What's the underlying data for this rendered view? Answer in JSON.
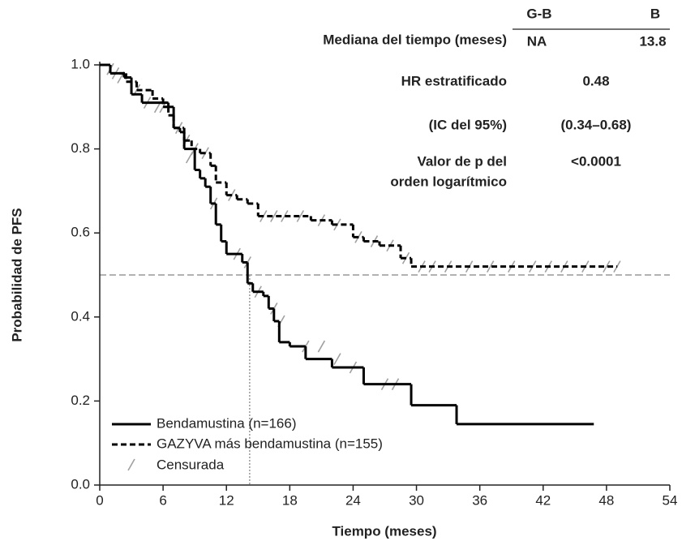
{
  "chart_data": {
    "type": "step",
    "xlabel": "Tiempo (meses)",
    "ylabel": "Probabilidad de PFS",
    "xlim": [
      0,
      54
    ],
    "xticks": [
      0,
      6,
      12,
      18,
      24,
      30,
      36,
      42,
      48,
      54
    ],
    "ylim": [
      0,
      1
    ],
    "yticks": [
      {
        "value": 0,
        "label": "0.0"
      },
      0.2,
      0.4,
      0.6,
      0.8,
      {
        "value": 1,
        "label": "1.0"
      }
    ],
    "series": [
      {
        "name": "Bendamustina (n=166)",
        "color": "#000000",
        "dash": false,
        "x": [
          0,
          1,
          2.3,
          3,
          4,
          6.5,
          7,
          7.6,
          8,
          9,
          9.5,
          10,
          10.5,
          11,
          11.5,
          12,
          13.5,
          14,
          14.5,
          15.5,
          16,
          16.5,
          17,
          18,
          19.5,
          22,
          25,
          29.5,
          33.8,
          46.8
        ],
        "values": [
          1,
          0.98,
          0.97,
          0.93,
          0.91,
          0.9,
          0.85,
          0.84,
          0.8,
          0.75,
          0.73,
          0.71,
          0.67,
          0.62,
          0.58,
          0.55,
          0.53,
          0.48,
          0.46,
          0.45,
          0.42,
          0.39,
          0.34,
          0.33,
          0.3,
          0.28,
          0.24,
          0.19,
          0.145,
          0.145
        ]
      },
      {
        "name": "GAZYVA más bendamustina (n=155)",
        "color": "#000000",
        "dash": true,
        "x": [
          0,
          1,
          2.5,
          3.5,
          5,
          6,
          6.5,
          7,
          8,
          8.7,
          9.5,
          10.5,
          11,
          12,
          13,
          14,
          15,
          20,
          22,
          24,
          25,
          26.5,
          28.5,
          29.5,
          49
        ],
        "values": [
          1,
          0.98,
          0.96,
          0.94,
          0.92,
          0.9,
          0.88,
          0.85,
          0.82,
          0.8,
          0.79,
          0.76,
          0.72,
          0.69,
          0.68,
          0.67,
          0.64,
          0.63,
          0.62,
          0.59,
          0.58,
          0.57,
          0.54,
          0.52,
          0.52
        ]
      }
    ],
    "censored": {
      "name": "Censurada",
      "color": "#a0a0a0",
      "x": [
        1,
        2,
        3.5,
        5.5,
        7.5,
        8.2,
        9,
        10,
        12.5,
        15.5,
        16.5,
        17.5,
        19,
        21,
        22.5,
        24.5,
        26,
        27.5,
        29,
        30.5,
        31.5,
        33,
        35,
        37,
        39,
        41,
        42.5,
        44,
        46,
        48,
        49,
        1.5,
        4.5,
        6,
        8.5,
        10.8,
        13,
        14,
        15,
        16.5,
        17.2,
        19.5,
        21,
        22.5,
        24,
        27,
        28
      ],
      "values": [
        0.99,
        0.97,
        0.94,
        0.9,
        0.85,
        0.82,
        0.8,
        0.79,
        0.69,
        0.64,
        0.64,
        0.64,
        0.64,
        0.63,
        0.62,
        0.59,
        0.58,
        0.57,
        0.54,
        0.52,
        0.52,
        0.52,
        0.52,
        0.52,
        0.52,
        0.52,
        0.52,
        0.52,
        0.52,
        0.52,
        0.52,
        0.98,
        0.91,
        0.9,
        0.78,
        0.67,
        0.55,
        0.53,
        0.46,
        0.42,
        0.39,
        0.33,
        0.33,
        0.3,
        0.28,
        0.24,
        0.24
      ]
    },
    "reference_lines": {
      "y": 0.5,
      "x": 14.2
    },
    "stats_table": {
      "columns": [
        "G-B",
        "B"
      ],
      "median": {
        "label": "Mediana del tiempo (meses)",
        "values": [
          "NA",
          "13.8"
        ]
      },
      "hr": {
        "label": "HR estratificado",
        "value": "0.48"
      },
      "ci": {
        "label": "(IC del 95%)",
        "value": "(0.34–0.68)"
      },
      "p": {
        "label": [
          "Valor de p del",
          "orden logarítmico"
        ],
        "value": "<0.0001"
      }
    }
  }
}
